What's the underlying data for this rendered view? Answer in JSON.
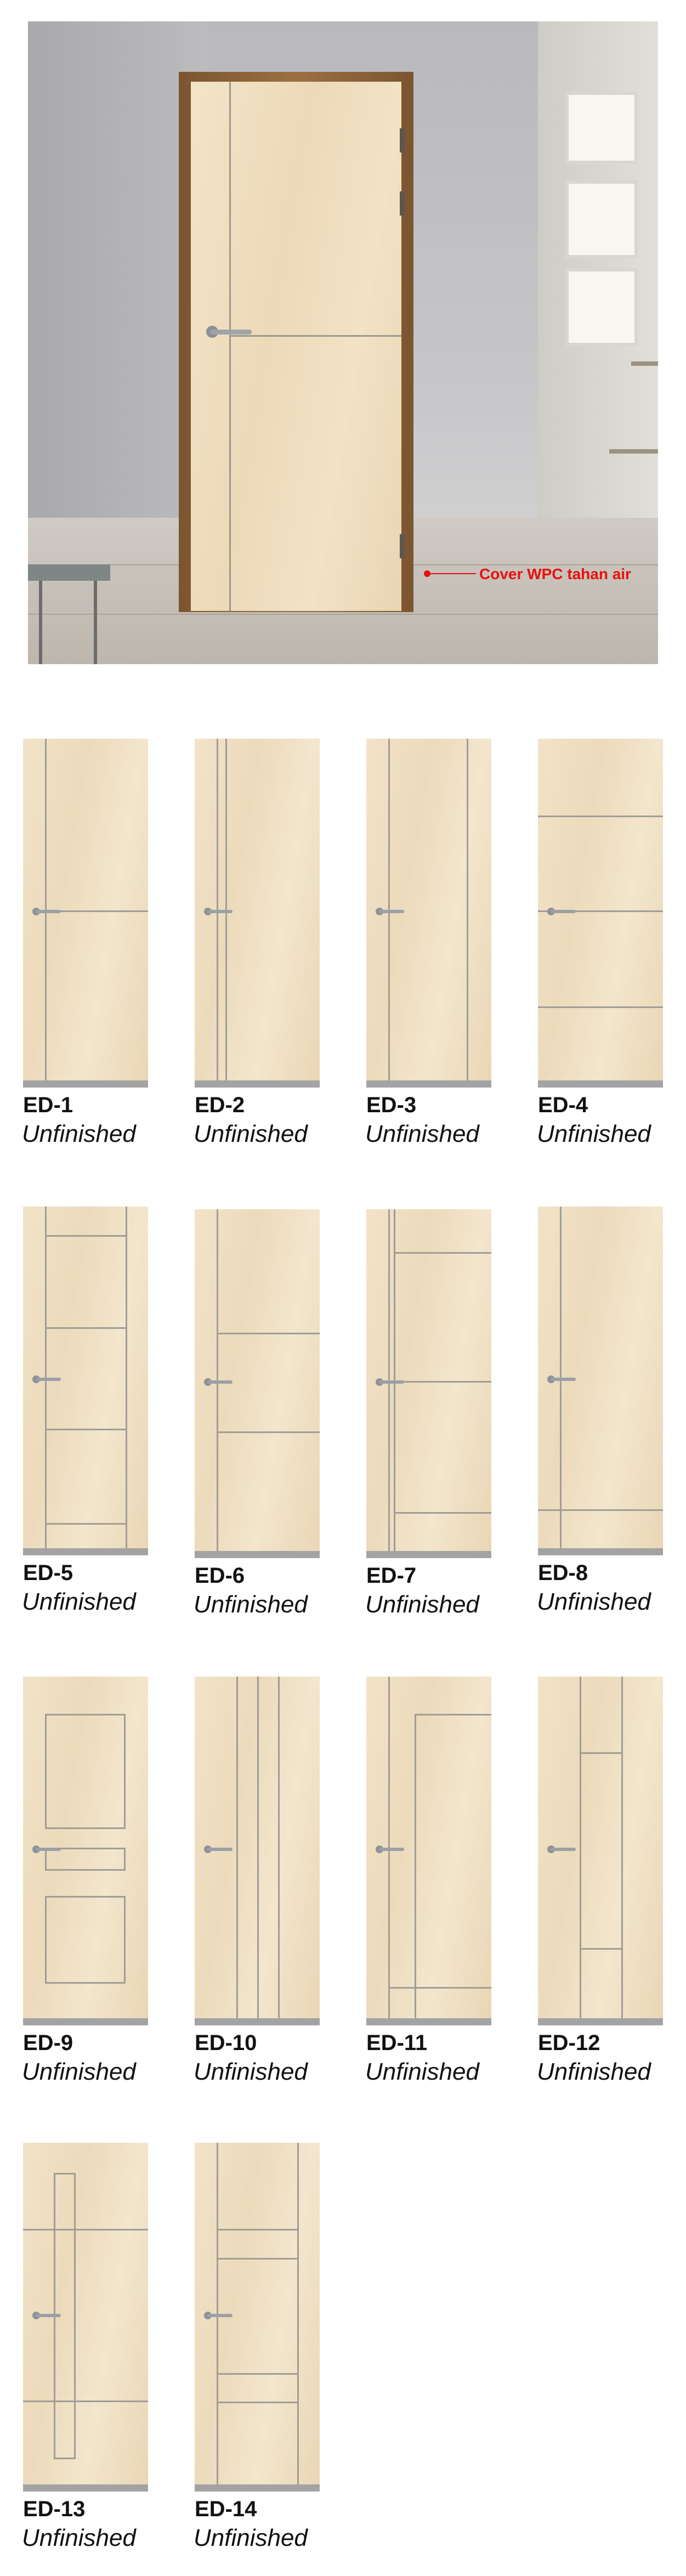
{
  "hero": {
    "callout_text": "Cover WPC tahan air",
    "callout_color": "#e8100f"
  },
  "products": [
    {
      "code": "ED-1",
      "finish": "Unfinished"
    },
    {
      "code": "ED-2",
      "finish": "Unfinished"
    },
    {
      "code": "ED-3",
      "finish": "Unfinished"
    },
    {
      "code": "ED-4",
      "finish": "Unfinished"
    },
    {
      "code": "ED-5",
      "finish": "Unfinished"
    },
    {
      "code": "ED-6",
      "finish": "Unfinished"
    },
    {
      "code": "ED-7",
      "finish": "Unfinished"
    },
    {
      "code": "ED-8",
      "finish": "Unfinished"
    },
    {
      "code": "ED-9",
      "finish": "Unfinished"
    },
    {
      "code": "ED-10",
      "finish": "Unfinished"
    },
    {
      "code": "ED-11",
      "finish": "Unfinished"
    },
    {
      "code": "ED-12",
      "finish": "Unfinished"
    },
    {
      "code": "ED-13",
      "finish": "Unfinished"
    },
    {
      "code": "ED-14",
      "finish": "Unfinished"
    }
  ]
}
